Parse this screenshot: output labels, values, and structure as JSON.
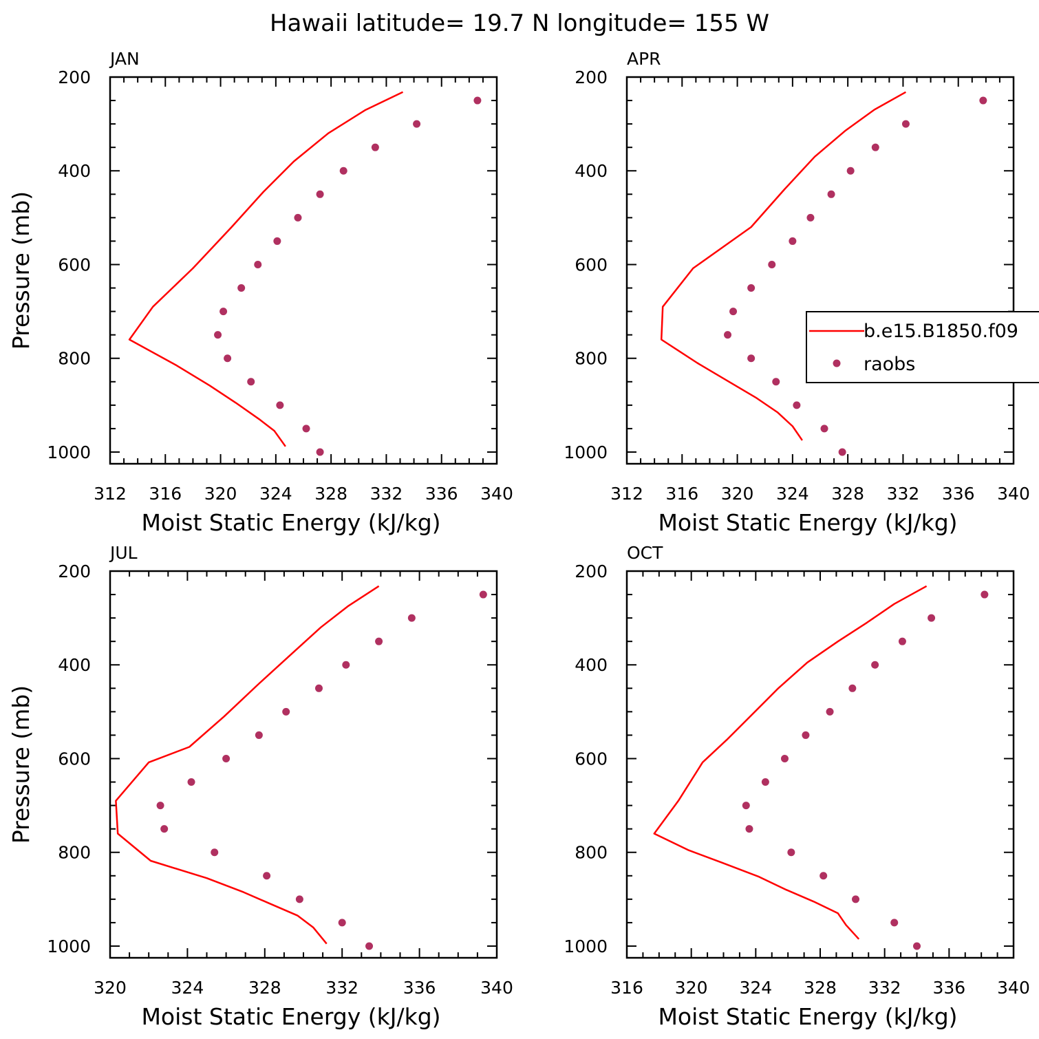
{
  "figure_title": "Hawaii  latitude= 19.7 N longitude= 155 W",
  "legend": {
    "model_label": "b.e15.B1850.f09",
    "obs_label": "raobs",
    "model_color": "#ff0000",
    "obs_color": "#b03060",
    "panel": "APR",
    "placement": "right, partially clipped by figure edge"
  },
  "chart_data": [
    {
      "type": "line",
      "title": "JAN",
      "xlabel": "Moist Static Energy (kJ/kg)",
      "ylabel": "Pressure (mb)",
      "xlim": [
        312,
        340
      ],
      "ylim": [
        1000,
        200
      ],
      "xticks": [
        312,
        316,
        320,
        324,
        328,
        332,
        336,
        340
      ],
      "yticks": [
        200,
        400,
        600,
        800,
        1000
      ],
      "series": [
        {
          "name": "b.e15.B1850.f09",
          "style": "line",
          "points": [
            [
              333.2,
              232
            ],
            [
              330.5,
              270
            ],
            [
              327.8,
              320
            ],
            [
              325.3,
              380
            ],
            [
              323.1,
              445
            ],
            [
              320.8,
              520
            ],
            [
              318.0,
              608
            ],
            [
              315.1,
              690
            ],
            [
              313.4,
              760
            ],
            [
              316.8,
              815
            ],
            [
              319.2,
              858
            ],
            [
              321.1,
              895
            ],
            [
              322.8,
              930
            ],
            [
              323.9,
              955
            ],
            [
              324.7,
              988
            ]
          ]
        },
        {
          "name": "raobs",
          "style": "scatter",
          "points": [
            [
              338.6,
              250
            ],
            [
              334.2,
              300
            ],
            [
              331.2,
              350
            ],
            [
              328.9,
              400
            ],
            [
              327.2,
              450
            ],
            [
              325.6,
              500
            ],
            [
              324.1,
              550
            ],
            [
              322.7,
              600
            ],
            [
              321.5,
              650
            ],
            [
              320.2,
              700
            ],
            [
              319.8,
              750
            ],
            [
              320.5,
              800
            ],
            [
              322.2,
              850
            ],
            [
              324.3,
              900
            ],
            [
              326.2,
              950
            ],
            [
              327.2,
              1000
            ]
          ]
        }
      ]
    },
    {
      "type": "line",
      "title": "APR",
      "xlabel": "Moist Static Energy (kJ/kg)",
      "ylabel": "",
      "xlim": [
        312,
        340
      ],
      "ylim": [
        1000,
        200
      ],
      "xticks": [
        312,
        316,
        320,
        324,
        328,
        332,
        336,
        340
      ],
      "yticks": [
        200,
        400,
        600,
        800,
        1000
      ],
      "series": [
        {
          "name": "b.e15.B1850.f09",
          "style": "line",
          "points": [
            [
              332.2,
              232
            ],
            [
              329.9,
              270
            ],
            [
              327.8,
              315
            ],
            [
              325.6,
              370
            ],
            [
              323.4,
              440
            ],
            [
              321.0,
              520
            ],
            [
              316.8,
              608
            ],
            [
              314.6,
              690
            ],
            [
              314.5,
              760
            ],
            [
              317.1,
              810
            ],
            [
              319.4,
              850
            ],
            [
              321.4,
              885
            ],
            [
              322.9,
              915
            ],
            [
              324.0,
              945
            ],
            [
              324.7,
              975
            ]
          ]
        },
        {
          "name": "raobs",
          "style": "scatter",
          "points": [
            [
              337.8,
              250
            ],
            [
              332.2,
              300
            ],
            [
              330.0,
              350
            ],
            [
              328.2,
              400
            ],
            [
              326.8,
              450
            ],
            [
              325.3,
              500
            ],
            [
              324.0,
              550
            ],
            [
              322.5,
              600
            ],
            [
              321.0,
              650
            ],
            [
              319.7,
              700
            ],
            [
              319.3,
              750
            ],
            [
              321.0,
              800
            ],
            [
              322.8,
              850
            ],
            [
              324.3,
              900
            ],
            [
              326.3,
              950
            ],
            [
              327.6,
              1000
            ]
          ]
        }
      ]
    },
    {
      "type": "line",
      "title": "JUL",
      "xlabel": "Moist Static Energy (kJ/kg)",
      "ylabel": "Pressure (mb)",
      "xlim": [
        320,
        340
      ],
      "ylim": [
        1000,
        200
      ],
      "xticks": [
        320,
        324,
        328,
        332,
        336,
        340
      ],
      "yticks": [
        200,
        400,
        600,
        800,
        1000
      ],
      "series": [
        {
          "name": "b.e15.B1850.f09",
          "style": "line",
          "points": [
            [
              333.9,
              232
            ],
            [
              332.3,
              275
            ],
            [
              330.9,
              320
            ],
            [
              329.3,
              380
            ],
            [
              327.7,
              440
            ],
            [
              325.9,
              510
            ],
            [
              324.1,
              575
            ],
            [
              322.0,
              608
            ],
            [
              320.3,
              690
            ],
            [
              320.4,
              760
            ],
            [
              322.1,
              818
            ],
            [
              325.0,
              855
            ],
            [
              326.9,
              885
            ],
            [
              328.3,
              910
            ],
            [
              329.7,
              935
            ],
            [
              330.5,
              960
            ],
            [
              330.9,
              980
            ],
            [
              331.2,
              995
            ]
          ]
        },
        {
          "name": "raobs",
          "style": "scatter",
          "points": [
            [
              339.3,
              250
            ],
            [
              335.6,
              300
            ],
            [
              333.9,
              350
            ],
            [
              332.2,
              400
            ],
            [
              330.8,
              450
            ],
            [
              329.1,
              500
            ],
            [
              327.7,
              550
            ],
            [
              326.0,
              600
            ],
            [
              324.2,
              650
            ],
            [
              322.6,
              700
            ],
            [
              322.8,
              750
            ],
            [
              325.4,
              800
            ],
            [
              328.1,
              850
            ],
            [
              329.8,
              900
            ],
            [
              332.0,
              950
            ],
            [
              333.4,
              1000
            ]
          ]
        }
      ]
    },
    {
      "type": "line",
      "title": "OCT",
      "xlabel": "Moist Static Energy (kJ/kg)",
      "ylabel": "",
      "xlim": [
        316,
        340
      ],
      "ylim": [
        1000,
        200
      ],
      "xticks": [
        316,
        320,
        324,
        328,
        332,
        336,
        340
      ],
      "yticks": [
        200,
        400,
        600,
        800,
        1000
      ],
      "series": [
        {
          "name": "b.e15.B1850.f09",
          "style": "line",
          "points": [
            [
              334.6,
              232
            ],
            [
              332.6,
              270
            ],
            [
              330.9,
              310
            ],
            [
              329.1,
              350
            ],
            [
              327.2,
              395
            ],
            [
              325.4,
              450
            ],
            [
              323.8,
              505
            ],
            [
              322.2,
              560
            ],
            [
              320.7,
              608
            ],
            [
              319.2,
              690
            ],
            [
              317.7,
              760
            ],
            [
              319.8,
              795
            ],
            [
              321.9,
              822
            ],
            [
              324.2,
              852
            ],
            [
              325.9,
              880
            ],
            [
              327.6,
              905
            ],
            [
              329.1,
              930
            ],
            [
              329.6,
              955
            ],
            [
              330.4,
              985
            ]
          ]
        },
        {
          "name": "raobs",
          "style": "scatter",
          "points": [
            [
              338.2,
              250
            ],
            [
              334.9,
              300
            ],
            [
              333.1,
              350
            ],
            [
              331.4,
              400
            ],
            [
              330.0,
              450
            ],
            [
              328.6,
              500
            ],
            [
              327.1,
              550
            ],
            [
              325.8,
              600
            ],
            [
              324.6,
              650
            ],
            [
              323.4,
              700
            ],
            [
              323.6,
              750
            ],
            [
              326.2,
              800
            ],
            [
              328.2,
              850
            ],
            [
              330.2,
              900
            ],
            [
              332.6,
              950
            ],
            [
              334.0,
              1000
            ]
          ]
        }
      ]
    }
  ]
}
